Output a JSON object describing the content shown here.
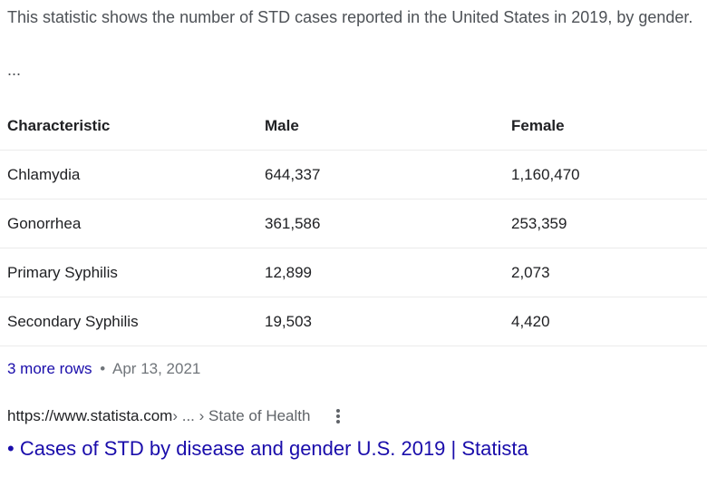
{
  "snippet": {
    "text": "This statistic shows the number of STD cases reported in the United States in 2019, by gender.",
    "ellipsis": "..."
  },
  "table": {
    "headers": [
      "Characteristic",
      "Male",
      "Female"
    ],
    "rows": [
      [
        "Chlamydia",
        "644,337",
        "1,160,470"
      ],
      [
        "Gonorrhea",
        "361,586",
        "253,359"
      ],
      [
        "Primary Syphilis",
        "12,899",
        "2,073"
      ],
      [
        "Secondary Syphilis",
        "19,503",
        "4,420"
      ]
    ]
  },
  "more_rows": {
    "link_label": "3 more rows",
    "separator": "•",
    "date": "Apr 13, 2021"
  },
  "source": {
    "url": "https://www.statista.com",
    "path": " › ... › State of Health",
    "menu_icon": "more-vert-icon"
  },
  "result": {
    "title": "• Cases of STD by disease and gender U.S. 2019 | Statista"
  },
  "colors": {
    "link": "#1a0dab",
    "text": "#202124",
    "secondary_text": "#70757a",
    "divider": "#ebebeb"
  }
}
